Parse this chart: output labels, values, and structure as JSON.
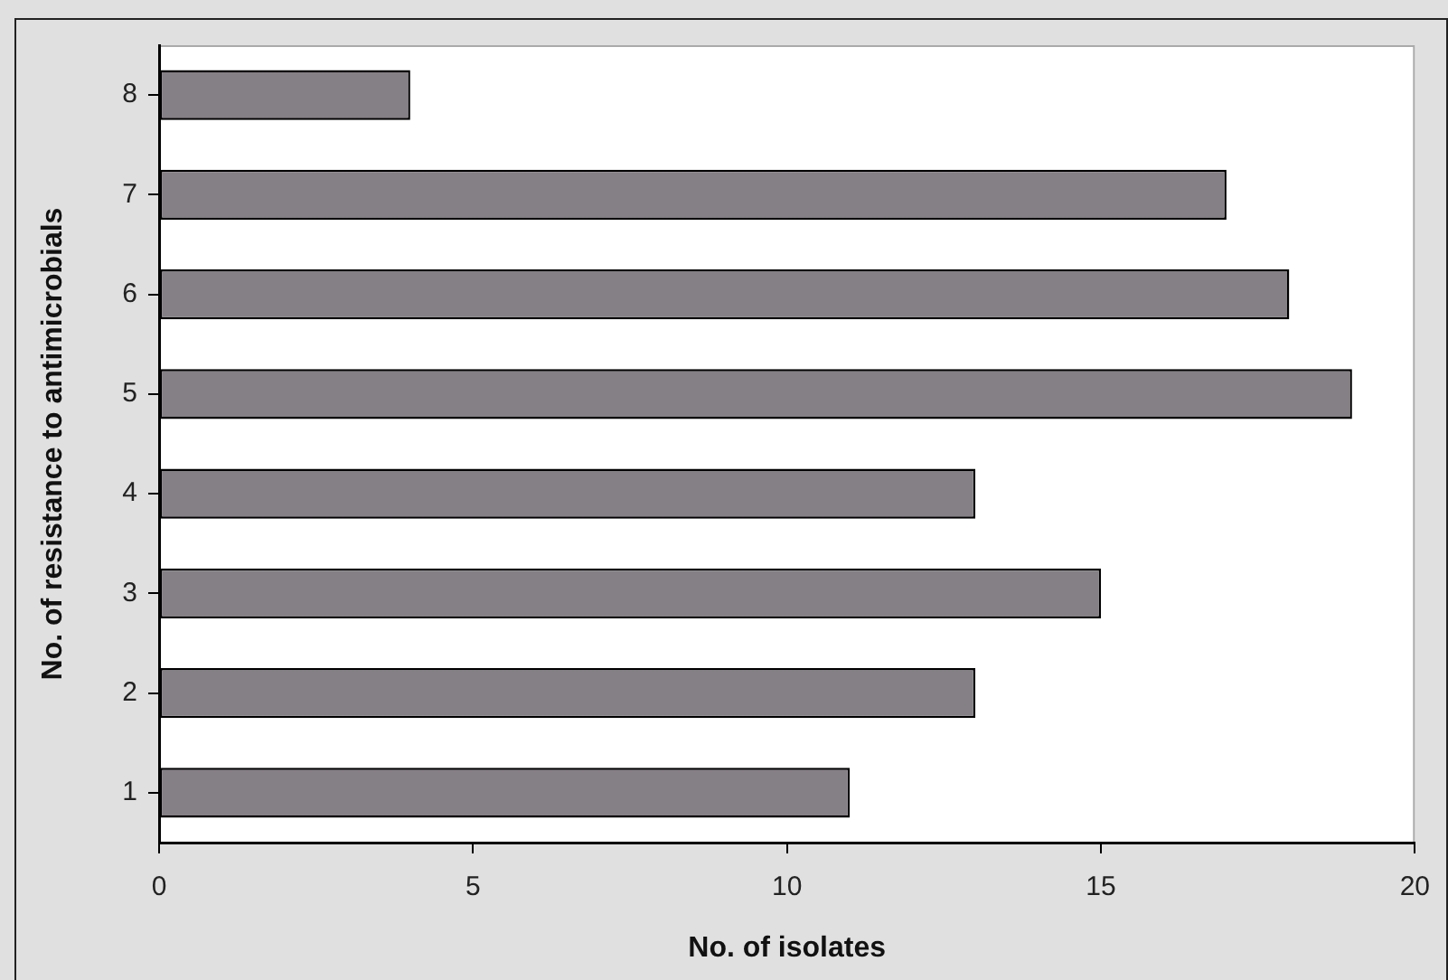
{
  "chart_data": {
    "type": "bar",
    "orientation": "horizontal",
    "xlabel": "No. of isolates",
    "ylabel": "No. of resistance to antimicrobials",
    "categories": [
      "8",
      "7",
      "6",
      "5",
      "4",
      "3",
      "2",
      "1"
    ],
    "values": [
      4,
      17,
      18,
      19,
      13,
      15,
      13,
      11
    ],
    "color": "#858085",
    "xlim": [
      0,
      20
    ],
    "xticks": [
      0,
      5,
      10,
      15,
      20
    ],
    "grid": false,
    "legend": false
  }
}
